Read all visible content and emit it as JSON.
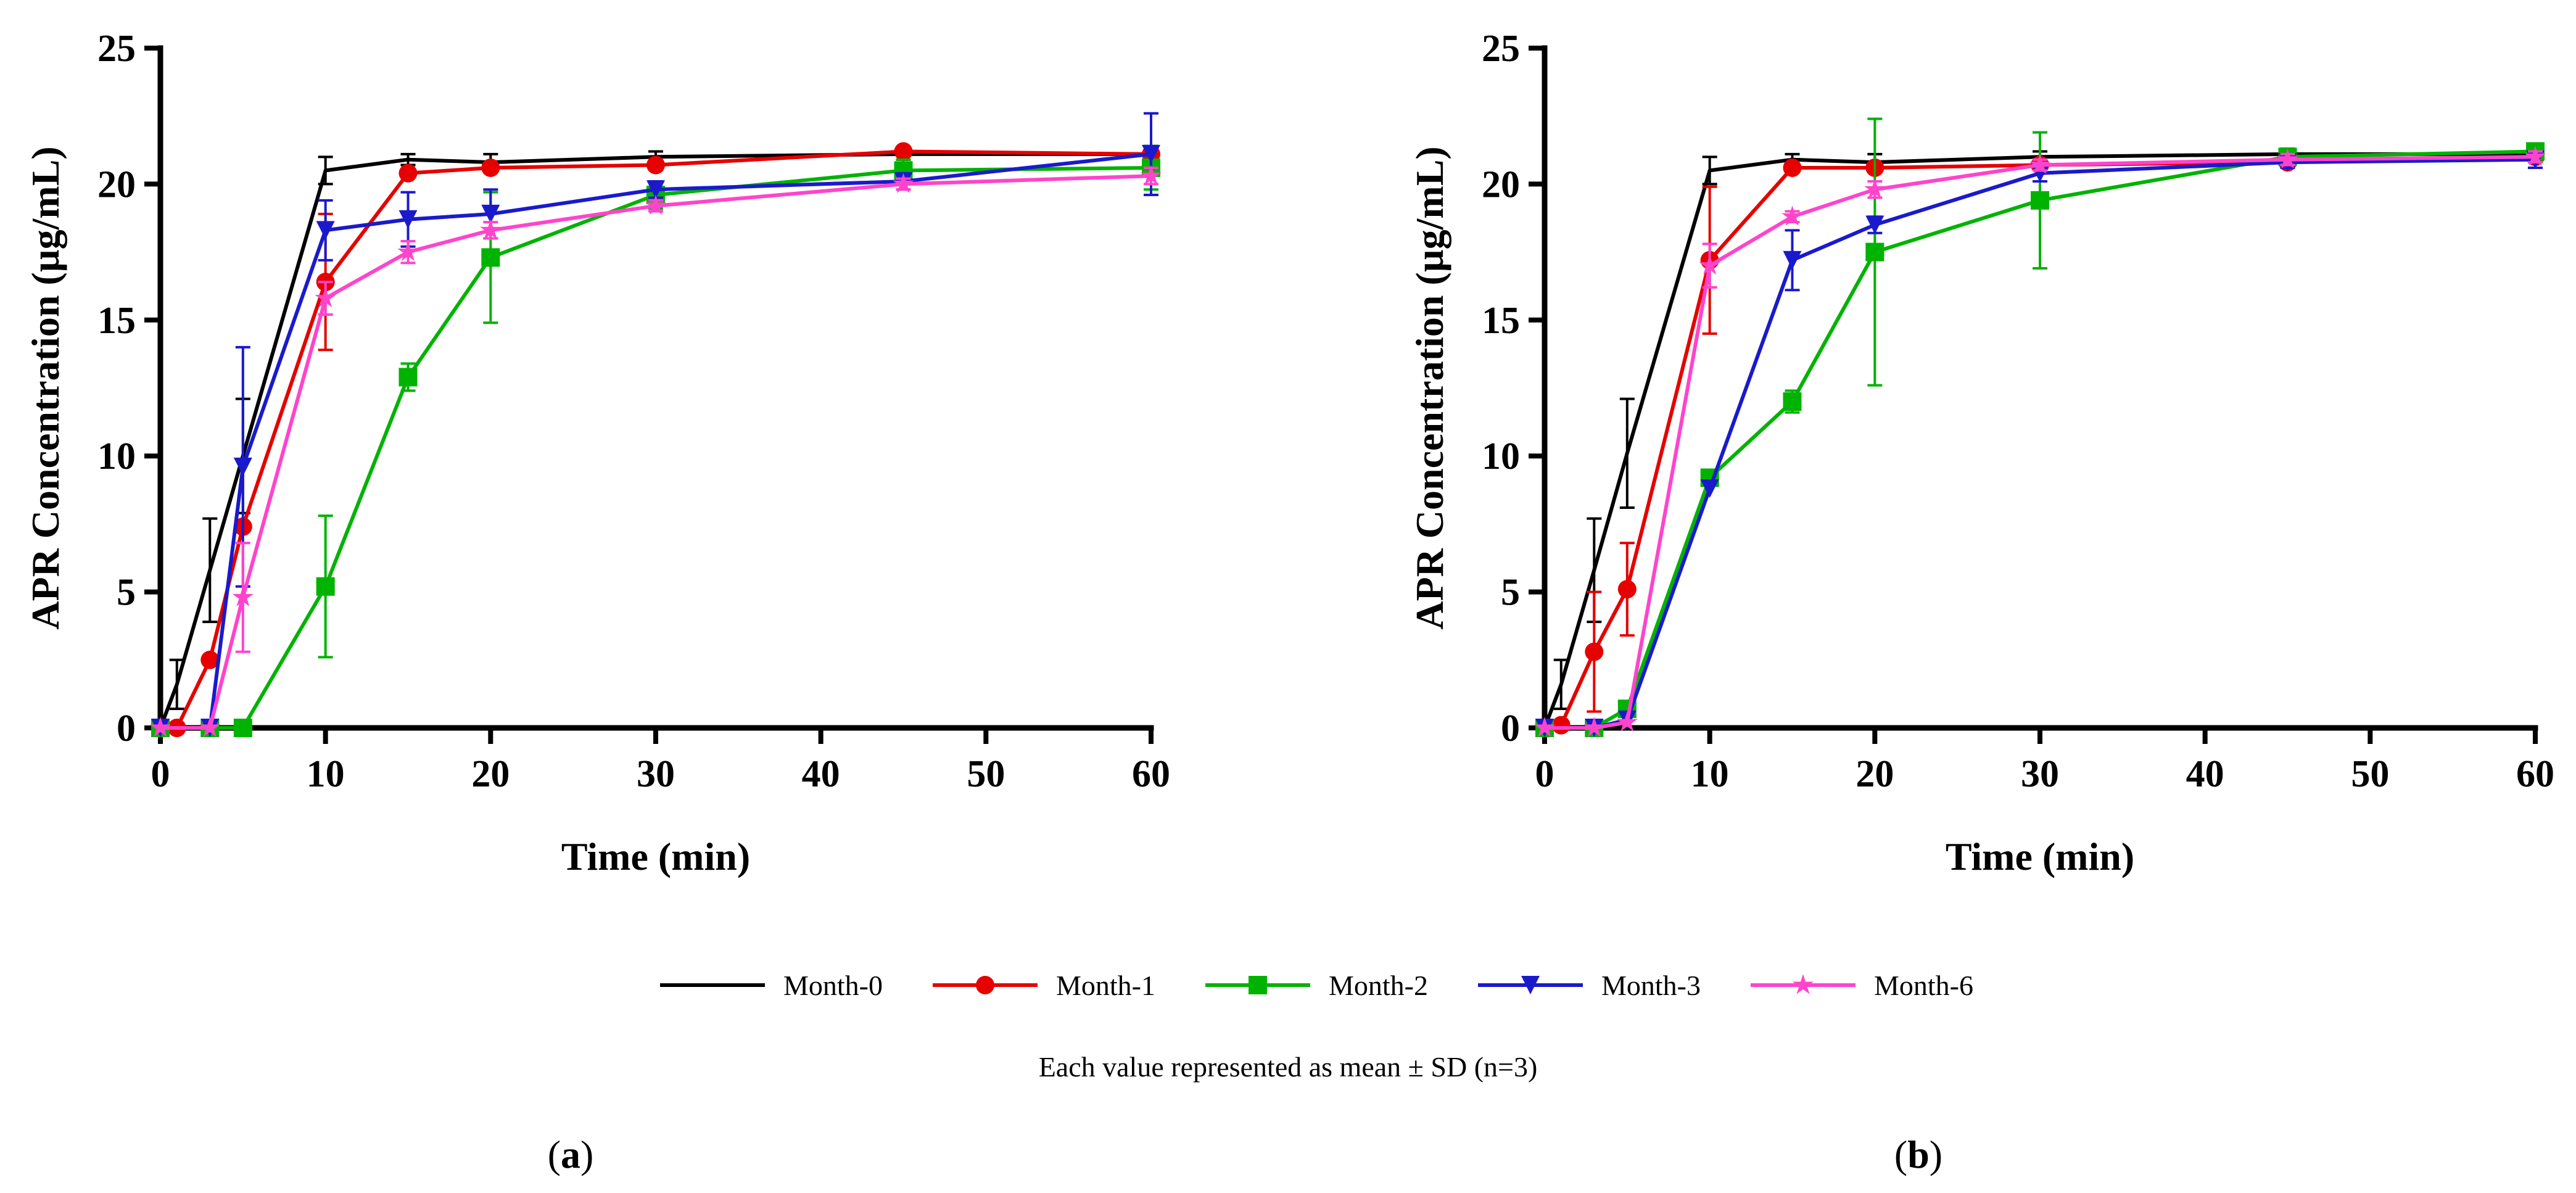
{
  "chart_data": [
    {
      "type": "line",
      "panel_label": "a",
      "xlabel": "Time (min)",
      "ylabel": "APR Concentration (µg/mL)",
      "xlim": [
        0,
        60
      ],
      "ylim": [
        0,
        25
      ],
      "xticks": [
        "0",
        "10",
        "20",
        "30",
        "40",
        "50",
        "60"
      ],
      "yticks": [
        "0",
        "5",
        "10",
        "15",
        "20",
        "25"
      ],
      "grid": false,
      "series": [
        {
          "name": "Month-0",
          "color": "#000000",
          "marker": "none",
          "x": [
            0,
            1,
            3,
            5,
            10,
            15,
            20,
            30,
            45,
            60
          ],
          "y": [
            0,
            1.6,
            5.8,
            10.0,
            20.5,
            20.9,
            20.8,
            21.0,
            21.1,
            21.1
          ],
          "sd": [
            0,
            0.9,
            1.9,
            2.1,
            0.5,
            0.2,
            0.3,
            0.2,
            0.2,
            0.3
          ]
        },
        {
          "name": "Month-1",
          "color": "#e60000",
          "marker": "circle",
          "x": [
            0,
            1,
            3,
            5,
            10,
            15,
            20,
            30,
            45,
            60
          ],
          "y": [
            0,
            0,
            2.5,
            7.4,
            16.4,
            20.4,
            20.6,
            20.7,
            21.2,
            21.1
          ],
          "sd": [
            0,
            0,
            0,
            0,
            2.5,
            0,
            0,
            0,
            0,
            0
          ]
        },
        {
          "name": "Month-2",
          "color": "#00b300",
          "marker": "square",
          "x": [
            0,
            3,
            5,
            10,
            15,
            20,
            30,
            45,
            60
          ],
          "y": [
            0,
            0,
            0,
            5.2,
            12.9,
            17.3,
            19.6,
            20.5,
            20.6
          ],
          "sd": [
            0,
            0,
            0,
            2.6,
            0.5,
            2.4,
            0.5,
            0.4,
            0.8
          ]
        },
        {
          "name": "Month-3",
          "color": "#1a1acc",
          "marker": "triangle-down",
          "x": [
            0,
            3,
            5,
            10,
            15,
            20,
            30,
            45,
            60
          ],
          "y": [
            0,
            0,
            9.6,
            18.3,
            18.7,
            18.9,
            19.8,
            20.1,
            21.1
          ],
          "sd": [
            0,
            0,
            4.4,
            1.1,
            1.0,
            0.9,
            0.3,
            0.3,
            1.5
          ]
        },
        {
          "name": "Month-6",
          "color": "#ff44cc",
          "marker": "star",
          "x": [
            0,
            3,
            5,
            10,
            15,
            20,
            30,
            45,
            60
          ],
          "y": [
            0,
            0,
            4.8,
            15.8,
            17.5,
            18.3,
            19.2,
            20.0,
            20.3
          ],
          "sd": [
            0,
            0,
            2.0,
            0.6,
            0.4,
            0.3,
            0.2,
            0.2,
            0.3
          ]
        }
      ]
    },
    {
      "type": "line",
      "panel_label": "b",
      "xlabel": "Time (min)",
      "ylabel": "APR Concentration (µg/mL)",
      "xlim": [
        0,
        60
      ],
      "ylim": [
        0,
        25
      ],
      "xticks": [
        "0",
        "10",
        "20",
        "30",
        "40",
        "50",
        "60"
      ],
      "yticks": [
        "0",
        "5",
        "10",
        "15",
        "20",
        "25"
      ],
      "grid": false,
      "series": [
        {
          "name": "Month-0",
          "color": "#000000",
          "marker": "none",
          "x": [
            0,
            1,
            3,
            5,
            10,
            15,
            20,
            30,
            45,
            60
          ],
          "y": [
            0,
            1.6,
            5.8,
            10.1,
            20.5,
            20.9,
            20.8,
            21.0,
            21.1,
            21.1
          ],
          "sd": [
            0,
            0.9,
            1.9,
            2.0,
            0.5,
            0.2,
            0.3,
            0.2,
            0.2,
            0.3
          ]
        },
        {
          "name": "Month-1",
          "color": "#e60000",
          "marker": "circle",
          "x": [
            0,
            1,
            3,
            5,
            10,
            15,
            20,
            30,
            45,
            60
          ],
          "y": [
            0,
            0.1,
            2.8,
            5.1,
            17.2,
            20.6,
            20.6,
            20.7,
            20.8,
            21.0
          ],
          "sd": [
            0,
            0,
            2.2,
            1.7,
            2.7,
            0,
            0,
            0,
            0,
            0
          ]
        },
        {
          "name": "Month-2",
          "color": "#00b300",
          "marker": "square",
          "x": [
            0,
            3,
            5,
            10,
            15,
            20,
            30,
            45,
            60
          ],
          "y": [
            0,
            0,
            0.7,
            9.2,
            12.0,
            17.5,
            19.4,
            21.0,
            21.2
          ],
          "sd": [
            0,
            0,
            0,
            0,
            0.4,
            4.9,
            2.5,
            0.2,
            0.2
          ]
        },
        {
          "name": "Month-3",
          "color": "#1a1acc",
          "marker": "triangle-down",
          "x": [
            0,
            3,
            5,
            10,
            15,
            20,
            30,
            45,
            60
          ],
          "y": [
            0,
            0,
            0.3,
            8.8,
            17.2,
            18.5,
            20.4,
            20.8,
            20.9
          ],
          "sd": [
            0,
            0,
            0,
            0,
            1.1,
            0.3,
            0.3,
            0.2,
            0.3
          ]
        },
        {
          "name": "Month-6",
          "color": "#ff44cc",
          "marker": "star",
          "x": [
            0,
            3,
            5,
            10,
            15,
            20,
            30,
            45,
            60
          ],
          "y": [
            0,
            0,
            0.2,
            17.0,
            18.8,
            19.8,
            20.7,
            20.9,
            21.0
          ],
          "sd": [
            0,
            0,
            0,
            0.8,
            0.2,
            0.3,
            0.2,
            0.2,
            0.2
          ]
        }
      ]
    }
  ],
  "legend": {
    "placement": "bottom-center",
    "items": [
      "Month-0",
      "Month-1",
      "Month-2",
      "Month-3",
      "Month-6"
    ]
  },
  "note": "Each value represented as mean ± SD (n=3)"
}
